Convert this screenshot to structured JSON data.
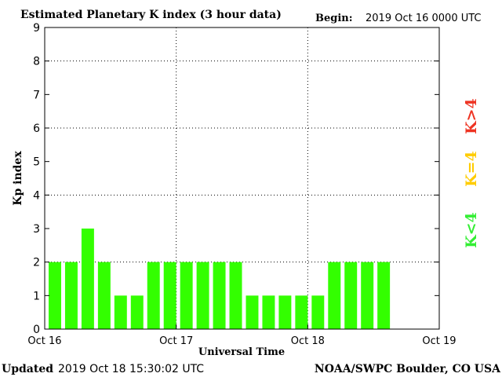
{
  "header": {
    "title": "Estimated Planetary K index (3 hour data)",
    "begin_label": "Begin:",
    "begin_value": "2019 Oct 16 0000 UTC"
  },
  "footer": {
    "updated_label": "Updated",
    "updated_value": "2019 Oct 18 15:30:02 UTC",
    "source": "NOAA/SWPC Boulder, CO USA"
  },
  "legend": {
    "items": [
      {
        "label": "K<4",
        "color": "#33ee33"
      },
      {
        "label": "K=4",
        "color": "#ffcc00"
      },
      {
        "label": "K>4",
        "color": "#ee3322"
      }
    ]
  },
  "chart_data": {
    "type": "bar",
    "xlabel": "Universal Time",
    "ylabel": "Kp index",
    "ylim": [
      0,
      9
    ],
    "yticks": [
      0,
      1,
      2,
      3,
      4,
      5,
      6,
      7,
      8,
      9
    ],
    "xticks": [
      "Oct 16",
      "Oct 17",
      "Oct 18",
      "Oct 19"
    ],
    "slots_total": 24,
    "bar_color": "#33ff00",
    "grid": "dotted at y=2,4,6,8 and at day boundaries",
    "values": [
      2,
      2,
      3,
      2,
      1,
      1,
      2,
      2,
      2,
      2,
      2,
      2,
      1,
      1,
      1,
      1,
      1,
      2,
      2,
      2,
      2
    ]
  }
}
